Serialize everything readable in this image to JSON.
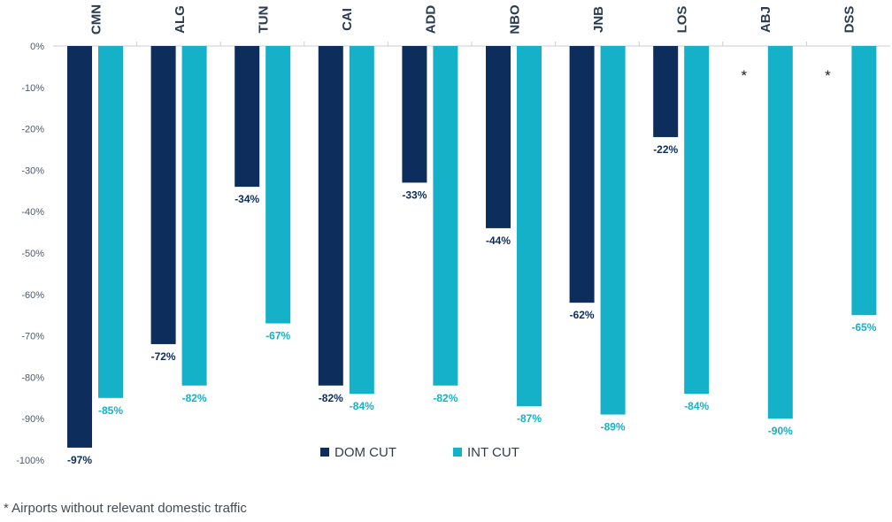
{
  "chart_data": {
    "type": "bar",
    "title": "",
    "xlabel": "",
    "ylabel": "",
    "ylim": [
      -100,
      0
    ],
    "yticks": [
      0,
      -10,
      -20,
      -30,
      -40,
      -50,
      -60,
      -70,
      -80,
      -90,
      -100
    ],
    "ytick_labels": [
      "0%",
      "-10%",
      "-20%",
      "-30%",
      "-40%",
      "-50%",
      "-60%",
      "-70%",
      "-80%",
      "-90%",
      "-100%"
    ],
    "categories": [
      "CMN",
      "ALG",
      "TUN",
      "CAI",
      "ADD",
      "NBO",
      "JNB",
      "LOS",
      "ABJ",
      "DSS"
    ],
    "series": [
      {
        "name": "DOM CUT",
        "color": "#0d2d5c",
        "values": [
          -97,
          -72,
          -34,
          -82,
          -33,
          -44,
          -62,
          -22,
          null,
          null
        ],
        "labels": [
          "-97%",
          "-72%",
          "-34%",
          "-82%",
          "-33%",
          "-44%",
          "-62%",
          "-22%",
          "*",
          "*"
        ]
      },
      {
        "name": "INT CUT",
        "color": "#14b1c8",
        "values": [
          -85,
          -82,
          -67,
          -84,
          -82,
          -87,
          -89,
          -84,
          -90,
          -65
        ],
        "labels": [
          "-85%",
          "-82%",
          "-67%",
          "-84%",
          "-82%",
          "-87%",
          "-89%",
          "-84%",
          "-90%",
          "-65%"
        ]
      }
    ],
    "grid": false,
    "legend": {
      "position": "bottom-center",
      "entries": [
        "DOM CUT",
        "INT CUT"
      ]
    },
    "footnote": "* Airports without relevant domestic traffic"
  },
  "colors": {
    "dom": "#0d2d5c",
    "int": "#14b1c8",
    "axis_text": "#4a5a70",
    "category_text": "#2a3a50",
    "separator": "#c8ced6"
  }
}
